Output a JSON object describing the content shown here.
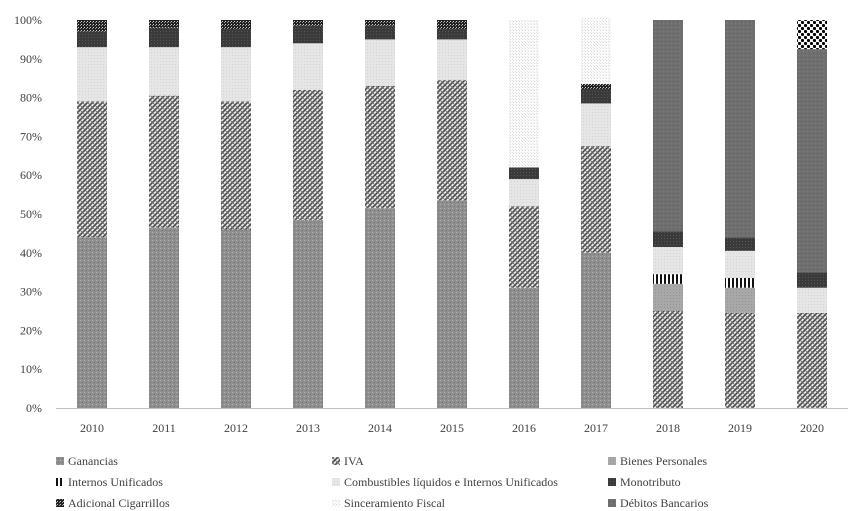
{
  "chart_data": {
    "type": "bar",
    "stacked": true,
    "normalized": true,
    "categories": [
      "2010",
      "2011",
      "2012",
      "2013",
      "2014",
      "2015",
      "2016",
      "2017",
      "2018",
      "2019",
      "2020"
    ],
    "ylim": [
      0,
      100
    ],
    "ytick_labels": [
      "0%",
      "10%",
      "20%",
      "30%",
      "40%",
      "50%",
      "60%",
      "70%",
      "80%",
      "90%",
      "100%"
    ],
    "grid": false,
    "legend_position": "bottom",
    "series": [
      {
        "name": "Ganancias",
        "values": [
          44,
          46.5,
          46,
          48.5,
          51.5,
          53.5,
          31,
          40,
          0,
          0,
          0
        ],
        "color": "#8c8c8c",
        "pattern": "ganancias"
      },
      {
        "name": "IVA",
        "values": [
          35,
          34,
          33,
          33.5,
          31.5,
          31,
          21,
          27.5,
          25,
          24.5,
          24.5
        ],
        "color": "#7a7a7a",
        "pattern": "iva"
      },
      {
        "name": "Bienes Personales",
        "values": [
          0,
          0,
          0,
          0,
          0,
          0,
          0,
          0,
          7,
          6.5,
          0
        ],
        "color": "#a6a6a6",
        "pattern": "bienes"
      },
      {
        "name": "Internos Unificados",
        "values": [
          0,
          0,
          0,
          0,
          0,
          0,
          0,
          0,
          2.5,
          2.5,
          0
        ],
        "color": "#202020",
        "pattern": "internos"
      },
      {
        "name": "Combustibles líquidos e Internos Unificados",
        "values": [
          14,
          12.5,
          14,
          12,
          12,
          10.5,
          7,
          11,
          7,
          7,
          6.5
        ],
        "color": "#e0e0e0",
        "pattern": "combustibles"
      },
      {
        "name": "Monotributo",
        "values": [
          4,
          5,
          4.5,
          4.5,
          3.5,
          2.5,
          3,
          3.5,
          4,
          3.5,
          4
        ],
        "color": "#404040",
        "pattern": "monotributo"
      },
      {
        "name": "Adicional Cigarrillos",
        "values": [
          3,
          2,
          2.5,
          1.5,
          1.5,
          2.5,
          0,
          1.5,
          0,
          0,
          0
        ],
        "color": "#303030",
        "pattern": "cigarrillos"
      },
      {
        "name": "Sinceramiento Fiscal",
        "values": [
          0,
          0,
          0,
          0,
          0,
          0,
          38,
          17,
          0,
          0,
          0
        ],
        "color": "#f0f0f0",
        "pattern": "sinceramiento"
      },
      {
        "name": "Débitos Bancarios",
        "values": [
          0,
          0,
          0,
          0,
          0,
          0,
          0,
          0,
          54.5,
          56,
          57.5
        ],
        "color": "#6e6e6e",
        "pattern": "debitos"
      },
      {
        "name": "",
        "values": [
          0,
          0,
          0,
          0,
          0,
          0,
          0,
          0,
          0,
          0,
          7.5
        ],
        "color": "#000000",
        "pattern": "dots"
      }
    ]
  }
}
